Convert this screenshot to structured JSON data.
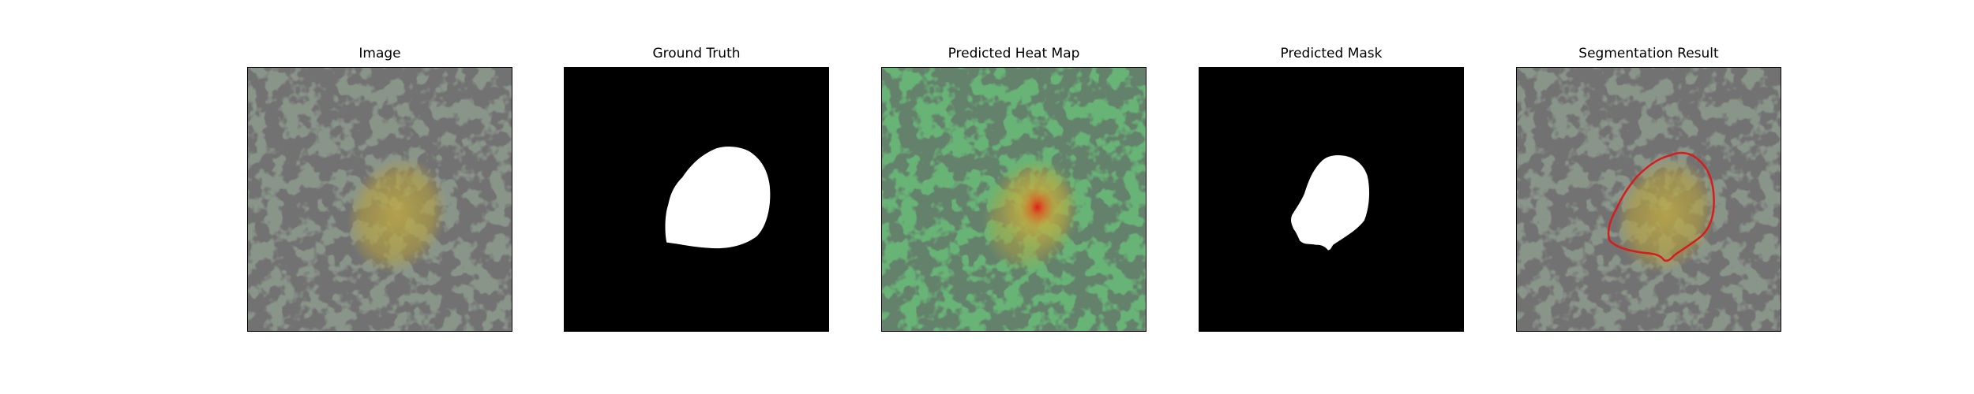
{
  "panels": [
    {
      "title": "Image"
    },
    {
      "title": "Ground Truth"
    },
    {
      "title": "Predicted Heat Map"
    },
    {
      "title": "Predicted Mask"
    },
    {
      "title": "Segmentation Result"
    }
  ],
  "colors": {
    "texture_base": "#8a958a",
    "texture_spots": "#2b2b2b",
    "lesion": "#bba63a",
    "mask_foreground": "#ffffff",
    "mask_background": "#000000",
    "heatmap_low": "#3fae5a",
    "heatmap_high": "#e02020",
    "contour": "#d81b1b"
  }
}
